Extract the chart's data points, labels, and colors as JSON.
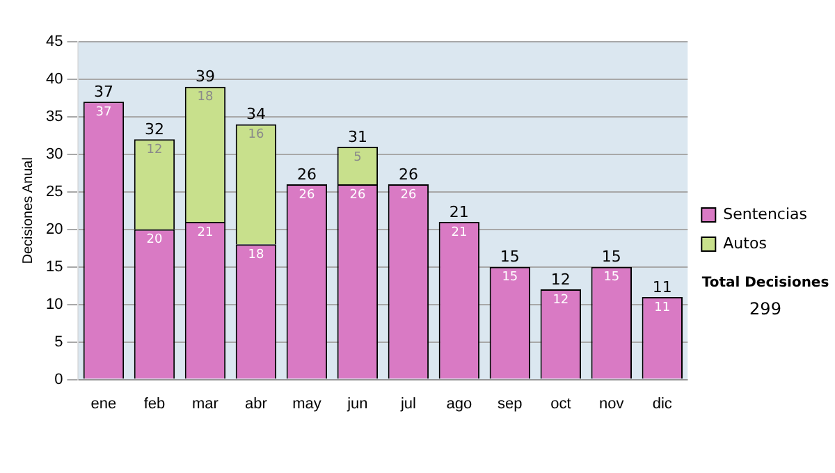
{
  "chart_data": {
    "type": "bar",
    "stacked": true,
    "ylabel": "Decisiones Anual",
    "categories": [
      "ene",
      "feb",
      "mar",
      "abr",
      "may",
      "jun",
      "jul",
      "ago",
      "sep",
      "oct",
      "nov",
      "dic"
    ],
    "series": [
      {
        "name": "Sentencias",
        "color": "#d97ac4",
        "values": [
          37,
          20,
          21,
          18,
          26,
          26,
          26,
          21,
          15,
          12,
          15,
          11
        ]
      },
      {
        "name": "Autos",
        "color": "#c8e08c",
        "values": [
          null,
          12,
          18,
          16,
          null,
          5,
          null,
          null,
          null,
          null,
          null,
          null
        ]
      }
    ],
    "ylim": [
      0,
      45
    ],
    "yticks": [
      0,
      5,
      10,
      15,
      20,
      25,
      30,
      35,
      40,
      45
    ],
    "grid": "y",
    "legend": "right",
    "data_labels": true,
    "totals": [
      "37",
      "32",
      "39",
      "34",
      "26",
      "31",
      "26",
      "21",
      "15",
      "12",
      "15",
      "11"
    ],
    "annotations": [
      "Total Decisiones",
      "299"
    ]
  }
}
